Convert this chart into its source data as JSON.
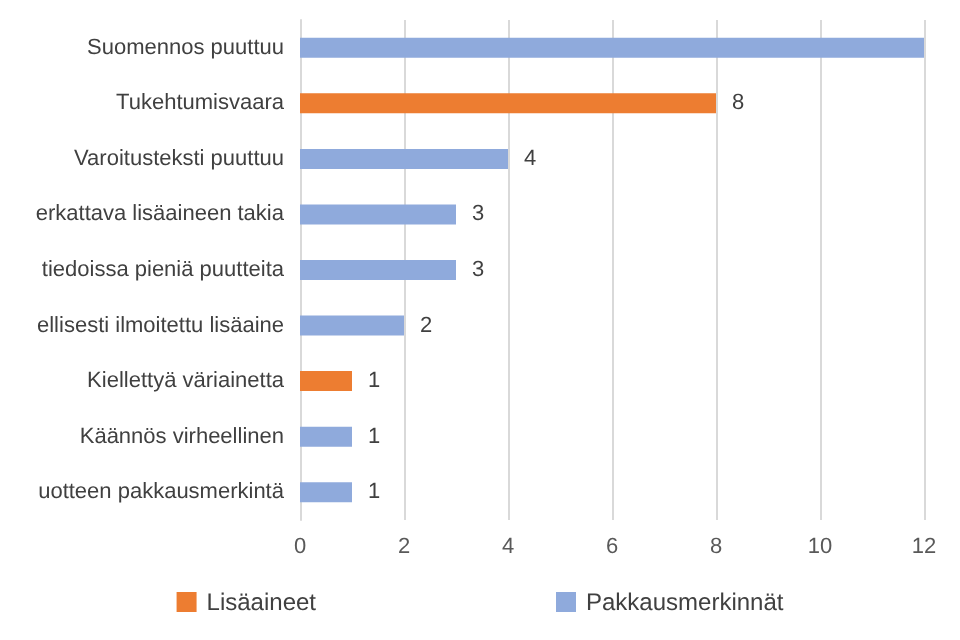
{
  "chart_data": {
    "type": "bar",
    "orientation": "horizontal",
    "categories": [
      "Suomennos puuttuu",
      "Tukehtumisvaara",
      "Varoitusteksti puuttuu",
      "erkattava lisäaineen takia",
      "tiedoissa pieniä puutteita",
      "ellisesti ilmoitettu lisäaine",
      "Kiellettyä väriainetta",
      "Käännös virheellinen",
      "uotteen pakkausmerkintä"
    ],
    "series": [
      {
        "name": "Lisäaineet",
        "color": "#ed7d31",
        "values": [
          null,
          8,
          null,
          null,
          null,
          null,
          1,
          null,
          null
        ],
        "value_labels": [
          null,
          "8",
          null,
          null,
          null,
          null,
          "1",
          null,
          null
        ]
      },
      {
        "name": "Pakkausmerkinnät",
        "color": "#8faadc",
        "values": [
          12,
          null,
          4,
          3,
          3,
          2,
          null,
          1,
          1
        ],
        "value_labels": [
          null,
          null,
          "4",
          "3",
          "3",
          "2",
          null,
          "1",
          "1"
        ]
      }
    ],
    "xlim": [
      0,
      12
    ],
    "xticks": [
      0,
      2,
      4,
      6,
      8,
      10,
      12
    ],
    "grid": "x",
    "legend": "bottom"
  }
}
